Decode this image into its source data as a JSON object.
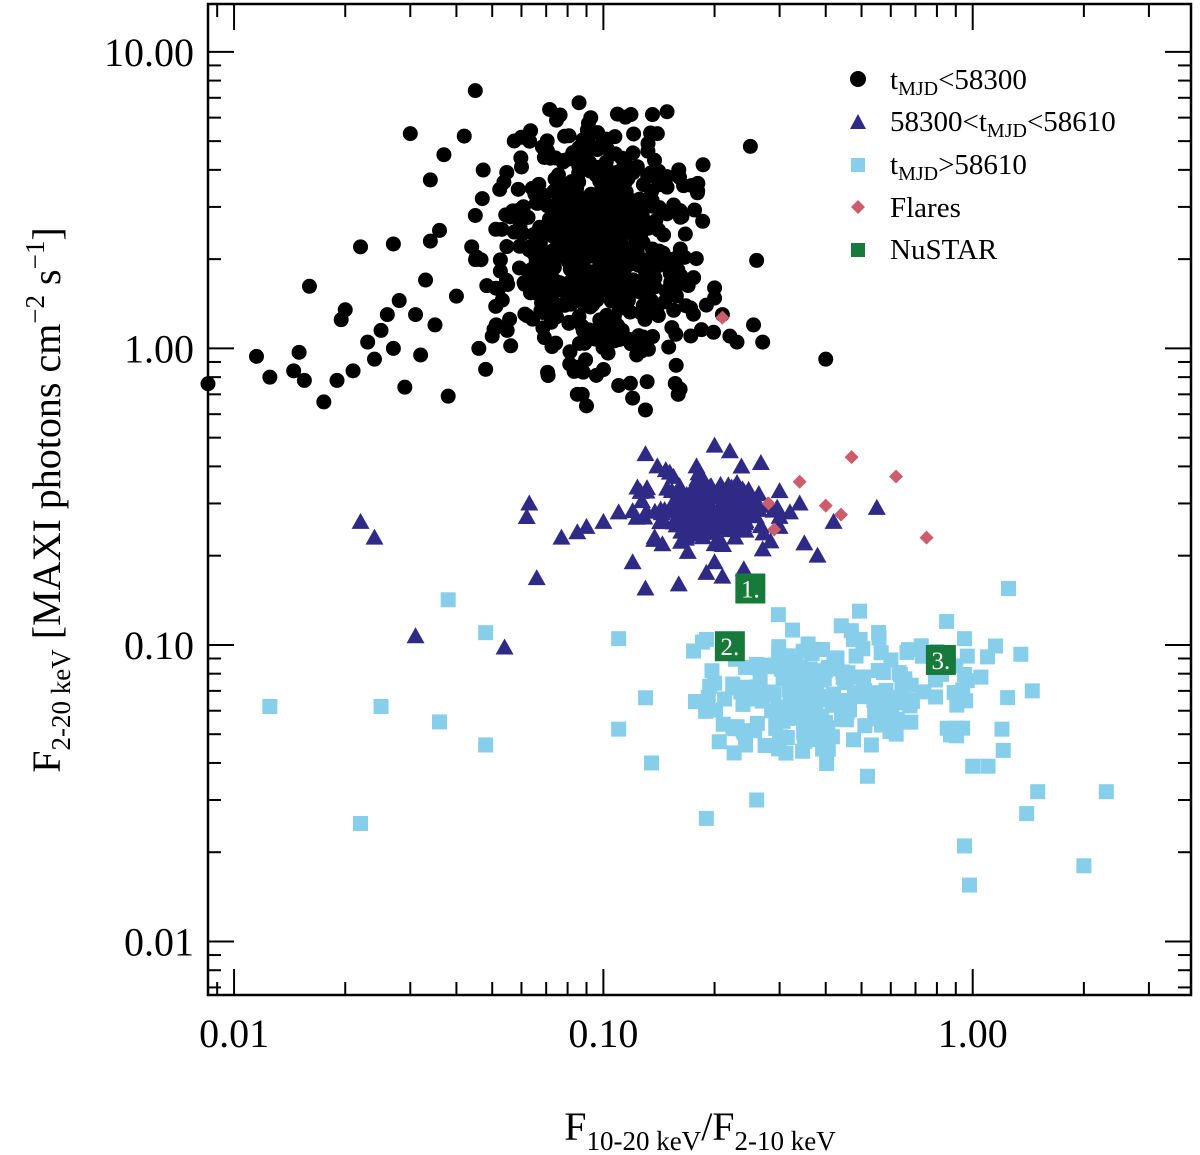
{
  "chart_data": {
    "type": "scatter",
    "scale": {
      "x": "log",
      "y": "log"
    },
    "xlim": [
      0.0085,
      3.9
    ],
    "ylim": [
      0.0066,
      14.5
    ],
    "xticks": [
      {
        "v": 0.01,
        "label": "0.01"
      },
      {
        "v": 0.1,
        "label": "0.10"
      },
      {
        "v": 1,
        "label": "1.00"
      }
    ],
    "yticks": [
      {
        "v": 0.01,
        "label": "0.01"
      },
      {
        "v": 0.1,
        "label": "0.10"
      },
      {
        "v": 1,
        "label": "1.00"
      },
      {
        "v": 10,
        "label": "10.00"
      }
    ],
    "xlabel": {
      "main": "F",
      "sub1": "10-20 keV",
      "mid": "/F",
      "sub2": "2-10 keV"
    },
    "ylabel": {
      "main": "F",
      "sub": "2-20 keV",
      "rest": " [MAXI photons cm",
      "sup1": "−2",
      "mid": " s",
      "sup2": "−1",
      "end": "]"
    },
    "legend_position": "top-right",
    "legend": [
      {
        "marker": "circle",
        "color": "#000000",
        "pre": "t",
        "sub": "MJD",
        "post": "<58300"
      },
      {
        "marker": "triangle",
        "color": "#2e2a86",
        "pre": "58300<t",
        "sub": "MJD",
        "post": "<58610"
      },
      {
        "marker": "square",
        "color": "#87ceeb",
        "pre": "t",
        "sub": "MJD",
        "post": ">58610"
      },
      {
        "marker": "diamond",
        "color": "#cd5c6c",
        "pre": "Flares",
        "sub": "",
        "post": ""
      },
      {
        "marker": "square",
        "color": "#177a3a",
        "pre": "NuSTAR",
        "sub": "",
        "post": ""
      }
    ],
    "series": [
      {
        "name": "tMJD<58300",
        "marker": "circle",
        "color": "#000000",
        "cloud": {
          "x_range": [
            0.045,
            0.2
          ],
          "y_range": [
            0.7,
            7.0
          ],
          "count": 650,
          "seed": 11
        },
        "points": [
          [
            0.0085,
            0.76
          ],
          [
            0.0115,
            0.94
          ],
          [
            0.0125,
            0.8
          ],
          [
            0.0145,
            0.84
          ],
          [
            0.015,
            0.97
          ],
          [
            0.0155,
            0.78
          ],
          [
            0.016,
            1.62
          ],
          [
            0.0175,
            0.66
          ],
          [
            0.019,
            0.78
          ],
          [
            0.0195,
            1.25
          ],
          [
            0.02,
            1.35
          ],
          [
            0.021,
            0.84
          ],
          [
            0.022,
            2.2
          ],
          [
            0.023,
            1.05
          ],
          [
            0.024,
            0.92
          ],
          [
            0.025,
            1.15
          ],
          [
            0.026,
            1.3
          ],
          [
            0.027,
            1.0
          ],
          [
            0.028,
            1.45
          ],
          [
            0.029,
            0.74
          ],
          [
            0.03,
            5.3
          ],
          [
            0.031,
            1.3
          ],
          [
            0.032,
            0.95
          ],
          [
            0.033,
            1.7
          ],
          [
            0.034,
            3.7
          ],
          [
            0.035,
            1.2
          ],
          [
            0.036,
            2.5
          ],
          [
            0.037,
            4.5
          ],
          [
            0.038,
            0.69
          ],
          [
            0.04,
            1.5
          ],
          [
            0.042,
            5.2
          ],
          [
            0.044,
            2.2
          ],
          [
            0.045,
            7.4
          ],
          [
            0.047,
            3.2
          ],
          [
            0.05,
            1.1
          ],
          [
            0.034,
            2.3
          ],
          [
            0.027,
            2.25
          ],
          [
            0.046,
            1.0
          ],
          [
            0.048,
            0.85
          ],
          [
            0.14,
            5.3
          ],
          [
            0.16,
            4.0
          ],
          [
            0.18,
            3.4
          ],
          [
            0.2,
            1.6
          ],
          [
            0.22,
            1.1
          ],
          [
            0.25,
            4.8
          ],
          [
            0.26,
            1.98
          ],
          [
            0.255,
            1.2
          ],
          [
            0.27,
            1.05
          ],
          [
            0.4,
            0.92
          ],
          [
            0.21,
            1.3
          ],
          [
            0.23,
            1.05
          ],
          [
            0.19,
            1.4
          ],
          [
            0.17,
            1.7
          ],
          [
            0.15,
            2.0
          ],
          [
            0.13,
            0.62
          ],
          [
            0.12,
            0.68
          ],
          [
            0.09,
            0.64
          ],
          [
            0.085,
            0.7
          ],
          [
            0.11,
            0.75
          ]
        ]
      },
      {
        "name": "58300<tMJD<58610",
        "marker": "triangle",
        "color": "#2e2a86",
        "cloud": {
          "x_range": [
            0.12,
            0.3
          ],
          "y_range": [
            0.2,
            0.42
          ],
          "count": 220,
          "seed": 23
        },
        "points": [
          [
            0.022,
            0.26
          ],
          [
            0.024,
            0.23
          ],
          [
            0.031,
            0.107
          ],
          [
            0.054,
            0.098
          ],
          [
            0.063,
            0.3
          ],
          [
            0.062,
            0.27
          ],
          [
            0.066,
            0.168
          ],
          [
            0.077,
            0.23
          ],
          [
            0.085,
            0.24
          ],
          [
            0.09,
            0.25
          ],
          [
            0.1,
            0.26
          ],
          [
            0.11,
            0.28
          ],
          [
            0.12,
            0.19
          ],
          [
            0.13,
            0.155
          ],
          [
            0.16,
            0.16
          ],
          [
            0.19,
            0.175
          ],
          [
            0.2,
            0.19
          ],
          [
            0.21,
            0.17
          ],
          [
            0.24,
            0.18
          ],
          [
            0.27,
            0.21
          ],
          [
            0.3,
            0.25
          ],
          [
            0.32,
            0.28
          ],
          [
            0.35,
            0.22
          ],
          [
            0.38,
            0.2
          ],
          [
            0.42,
            0.26
          ],
          [
            0.55,
            0.29
          ],
          [
            0.34,
            0.3
          ],
          [
            0.3,
            0.33
          ],
          [
            0.22,
            0.45
          ],
          [
            0.2,
            0.47
          ],
          [
            0.14,
            0.4
          ],
          [
            0.13,
            0.44
          ]
        ]
      },
      {
        "name": "tMJD>58610",
        "marker": "square",
        "color": "#87ceeb",
        "cloud": {
          "x_range": [
            0.13,
            1.3
          ],
          "y_range": [
            0.035,
            0.13
          ],
          "count": 230,
          "seed": 37
        },
        "points": [
          [
            0.0125,
            0.062
          ],
          [
            0.022,
            0.025
          ],
          [
            0.025,
            0.062
          ],
          [
            0.036,
            0.055
          ],
          [
            0.038,
            0.142
          ],
          [
            0.048,
            0.11
          ],
          [
            0.048,
            0.046
          ],
          [
            0.11,
            0.052
          ],
          [
            0.11,
            0.105
          ],
          [
            0.135,
            0.04
          ],
          [
            0.19,
            0.026
          ],
          [
            0.26,
            0.03
          ],
          [
            0.95,
            0.021
          ],
          [
            0.98,
            0.0155
          ],
          [
            1.0,
            0.039
          ],
          [
            1.1,
            0.039
          ],
          [
            1.2,
            0.052
          ],
          [
            1.25,
            0.155
          ],
          [
            1.35,
            0.093
          ],
          [
            1.45,
            0.07
          ],
          [
            1.5,
            0.032
          ],
          [
            1.4,
            0.027
          ],
          [
            2.0,
            0.018
          ],
          [
            2.3,
            0.032
          ],
          [
            0.95,
            0.105
          ],
          [
            0.9,
            0.085
          ],
          [
            0.85,
            0.12
          ],
          [
            0.8,
            0.095
          ]
        ]
      },
      {
        "name": "Flares",
        "marker": "diamond",
        "color": "#cd5c6c",
        "points": [
          [
            0.21,
            1.27
          ],
          [
            0.47,
            0.43
          ],
          [
            0.34,
            0.355
          ],
          [
            0.62,
            0.37
          ],
          [
            0.28,
            0.3
          ],
          [
            0.4,
            0.295
          ],
          [
            0.44,
            0.275
          ],
          [
            0.29,
            0.245
          ],
          [
            0.75,
            0.23
          ]
        ]
      }
    ],
    "nustar": [
      {
        "label": "1.",
        "x": 0.25,
        "y": 0.155
      },
      {
        "label": "2.",
        "x": 0.22,
        "y": 0.099
      },
      {
        "label": "3.",
        "x": 0.82,
        "y": 0.089
      }
    ]
  }
}
